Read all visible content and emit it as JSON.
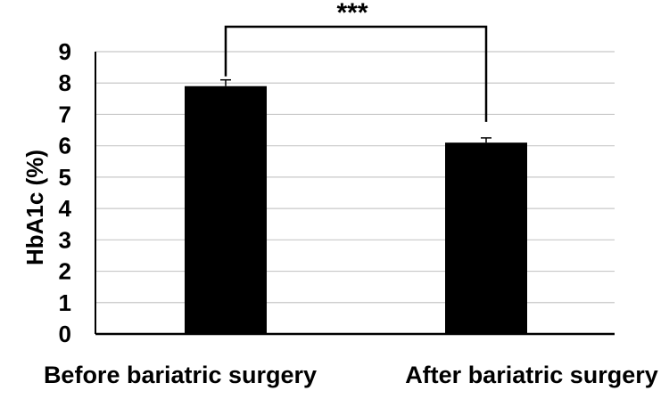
{
  "chart_data": {
    "type": "bar",
    "categories": [
      "Before bariatric surgery",
      "After bariatric surgery"
    ],
    "values": [
      7.9,
      6.1
    ],
    "error": [
      0.2,
      0.15
    ],
    "ylabel": "HbA1c (%)",
    "xlabel": "",
    "title": "",
    "ylim": [
      0,
      9
    ],
    "yticks": [
      "0",
      "1",
      "2",
      "3",
      "4",
      "5",
      "6",
      "7",
      "8",
      "9"
    ],
    "grid": true,
    "bar_color": "#000000",
    "grid_color": "#c8c8c8",
    "significance": "***"
  }
}
